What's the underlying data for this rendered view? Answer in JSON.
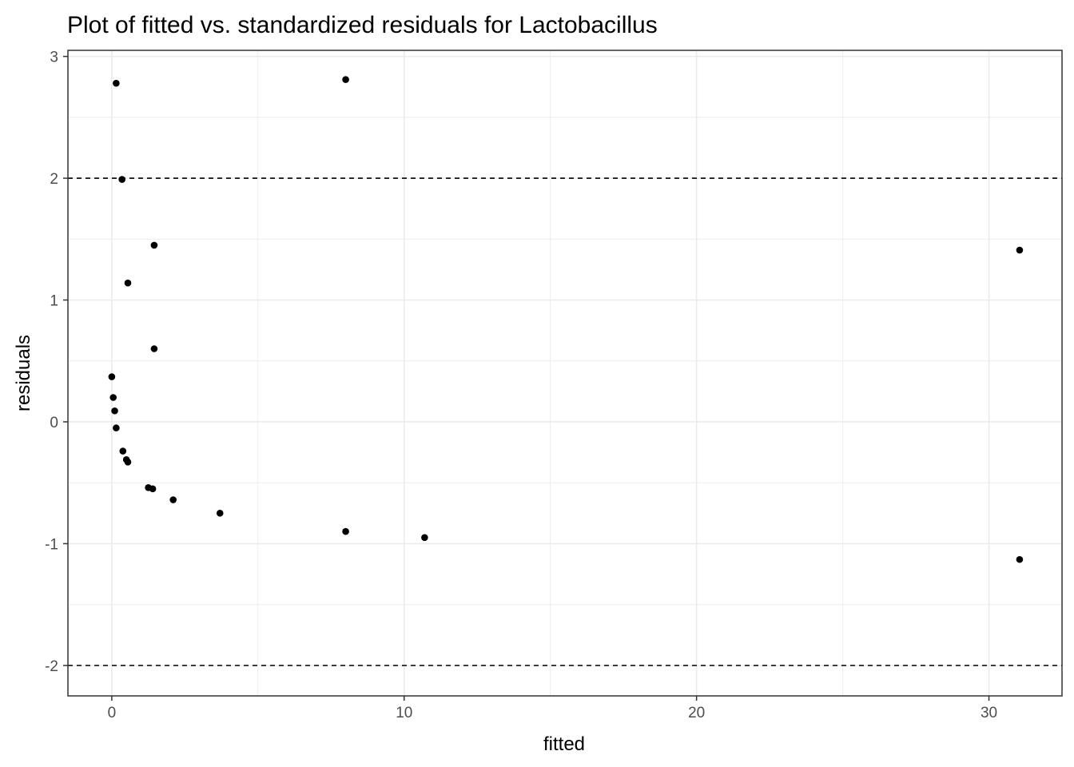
{
  "chart_data": {
    "type": "scatter",
    "title": "Plot of fitted vs. standardized residuals for Lactobacillus",
    "xlabel": "fitted",
    "ylabel": "residuals",
    "xlim": [
      -1.5,
      32.5
    ],
    "ylim": [
      -2.25,
      3.05
    ],
    "x_ticks": [
      0,
      10,
      20,
      30
    ],
    "x_tick_labels": [
      "0",
      "10",
      "20",
      "30"
    ],
    "y_ticks": [
      -2,
      -1,
      0,
      1,
      2,
      3
    ],
    "y_tick_labels": [
      "-2",
      "-1",
      "0",
      "1",
      "2",
      "3"
    ],
    "grid": true,
    "reference_lines": [
      {
        "axis": "y",
        "value": 2,
        "style": "dashed"
      },
      {
        "axis": "y",
        "value": -2,
        "style": "dashed"
      }
    ],
    "points": [
      {
        "x": 0.15,
        "y": 2.78
      },
      {
        "x": 8.0,
        "y": 2.81
      },
      {
        "x": 0.35,
        "y": 1.99
      },
      {
        "x": 1.45,
        "y": 1.45
      },
      {
        "x": 0.55,
        "y": 1.14
      },
      {
        "x": 31.05,
        "y": 1.41
      },
      {
        "x": 1.45,
        "y": 0.6
      },
      {
        "x": 0.0,
        "y": 0.37
      },
      {
        "x": 0.05,
        "y": 0.2
      },
      {
        "x": 0.1,
        "y": 0.09
      },
      {
        "x": 0.15,
        "y": -0.05
      },
      {
        "x": 0.38,
        "y": -0.24
      },
      {
        "x": 0.5,
        "y": -0.31
      },
      {
        "x": 0.55,
        "y": -0.33
      },
      {
        "x": 1.25,
        "y": -0.54
      },
      {
        "x": 1.4,
        "y": -0.55
      },
      {
        "x": 2.1,
        "y": -0.64
      },
      {
        "x": 3.7,
        "y": -0.75
      },
      {
        "x": 8.0,
        "y": -0.9
      },
      {
        "x": 10.7,
        "y": -0.95
      },
      {
        "x": 31.05,
        "y": -1.13
      }
    ],
    "point_color": "#000000",
    "grid_color": "#ebebeb",
    "panel_border_color": "#333333"
  }
}
